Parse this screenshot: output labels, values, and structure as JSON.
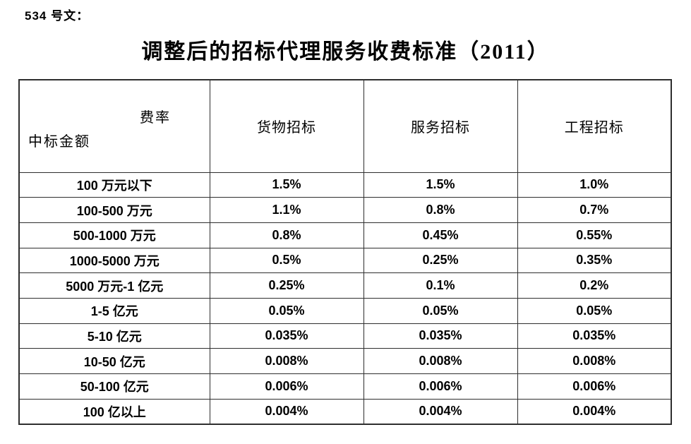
{
  "doc_number": "534 号文：",
  "title": "调整后的招标代理服务收费标准（2011）",
  "colors": {
    "background": "#ffffff",
    "text": "#000000",
    "table_border": "#2e2e2e"
  },
  "table": {
    "corner": {
      "top_right_label": "费率",
      "bottom_left_label": "中标金额"
    },
    "columns": [
      "货物招标",
      "服务招标",
      "工程招标"
    ],
    "rows": [
      {
        "label": "100 万元以下",
        "values": [
          "1.5%",
          "1.5%",
          "1.0%"
        ]
      },
      {
        "label": "100-500 万元",
        "values": [
          "1.1%",
          "0.8%",
          "0.7%"
        ]
      },
      {
        "label": "500-1000 万元",
        "values": [
          "0.8%",
          "0.45%",
          "0.55%"
        ]
      },
      {
        "label": "1000-5000 万元",
        "values": [
          "0.5%",
          "0.25%",
          "0.35%"
        ]
      },
      {
        "label": "5000 万元-1 亿元",
        "values": [
          "0.25%",
          "0.1%",
          "0.2%"
        ]
      },
      {
        "label": "1-5 亿元",
        "values": [
          "0.05%",
          "0.05%",
          "0.05%"
        ]
      },
      {
        "label": "5-10 亿元",
        "values": [
          "0.035%",
          "0.035%",
          "0.035%"
        ]
      },
      {
        "label": "10-50 亿元",
        "values": [
          "0.008%",
          "0.008%",
          "0.008%"
        ]
      },
      {
        "label": "50-100 亿元",
        "values": [
          "0.006%",
          "0.006%",
          "0.006%"
        ]
      },
      {
        "label": "100 亿以上",
        "values": [
          "0.004%",
          "0.004%",
          "0.004%"
        ]
      }
    ]
  }
}
